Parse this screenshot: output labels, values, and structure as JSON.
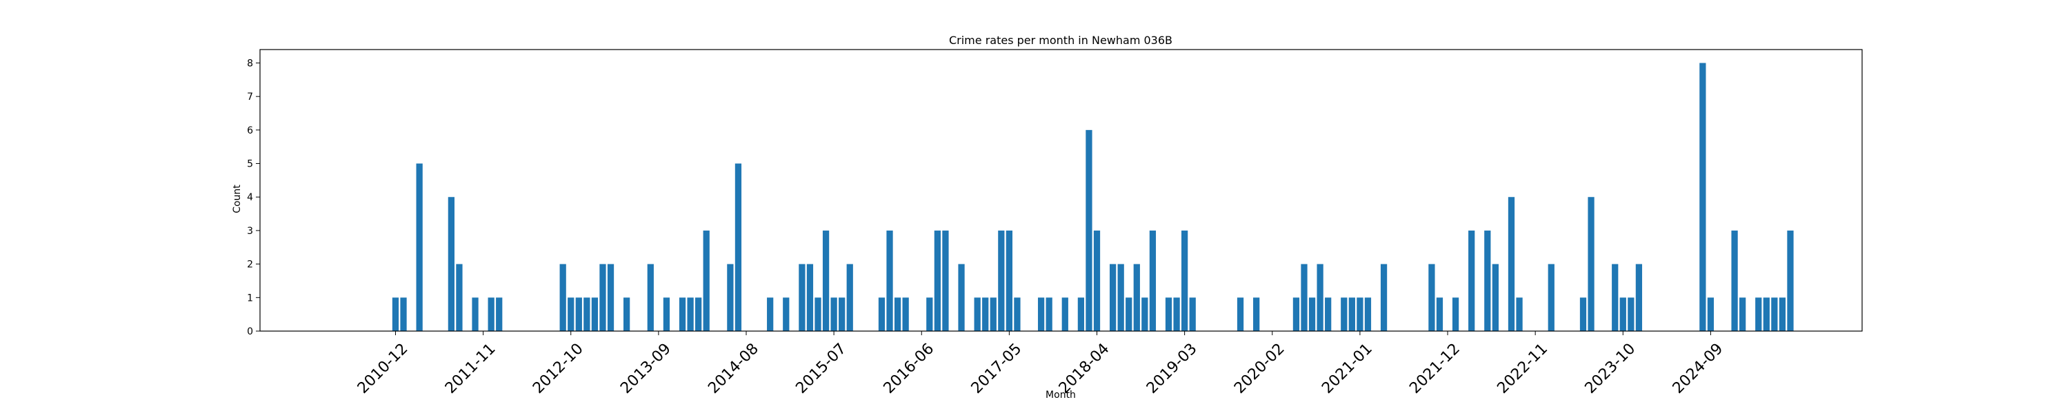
{
  "chart_data": {
    "type": "bar",
    "title": "Crime rates per month in Newham 036B",
    "xlabel": "Month",
    "ylabel": "Count",
    "ylim": [
      0,
      8.4
    ],
    "yticks": [
      0,
      1,
      2,
      3,
      4,
      5,
      6,
      7,
      8
    ],
    "xticks": [
      "2010-12",
      "2011-11",
      "2012-10",
      "2013-09",
      "2014-08",
      "2015-07",
      "2016-06",
      "2017-05",
      "2018-04",
      "2019-03",
      "2020-02",
      "2021-01",
      "2021-12",
      "2022-11",
      "2023-10",
      "2024-09"
    ],
    "grid": false,
    "bar_color": "#1f77b4",
    "x": [
      "2010-12",
      "2011-01",
      "2011-03",
      "2011-07",
      "2011-08",
      "2011-10",
      "2011-12",
      "2012-01",
      "2012-09",
      "2012-10",
      "2012-11",
      "2012-12",
      "2013-01",
      "2013-02",
      "2013-03",
      "2013-05",
      "2013-08",
      "2013-10",
      "2013-12",
      "2014-01",
      "2014-02",
      "2014-03",
      "2014-06",
      "2014-07",
      "2014-11",
      "2015-01",
      "2015-03",
      "2015-04",
      "2015-05",
      "2015-06",
      "2015-07",
      "2015-08",
      "2015-09",
      "2016-01",
      "2016-02",
      "2016-03",
      "2016-04",
      "2016-07",
      "2016-08",
      "2016-09",
      "2016-11",
      "2017-01",
      "2017-02",
      "2017-03",
      "2017-04",
      "2017-05",
      "2017-06",
      "2017-09",
      "2017-10",
      "2017-12",
      "2018-02",
      "2018-03",
      "2018-04",
      "2018-06",
      "2018-07",
      "2018-08",
      "2018-09",
      "2018-10",
      "2018-11",
      "2019-01",
      "2019-02",
      "2019-03",
      "2019-04",
      "2019-10",
      "2019-12",
      "2020-05",
      "2020-06",
      "2020-07",
      "2020-08",
      "2020-09",
      "2020-11",
      "2020-12",
      "2021-01",
      "2021-02",
      "2021-04",
      "2021-10",
      "2021-11",
      "2022-01",
      "2022-03",
      "2022-05",
      "2022-06",
      "2022-08",
      "2022-09",
      "2023-01",
      "2023-05",
      "2023-06",
      "2023-09",
      "2023-10",
      "2023-11",
      "2023-12",
      "2024-08",
      "2024-09",
      "2024-12",
      "2025-01",
      "2025-03",
      "2025-04",
      "2025-05",
      "2025-06",
      "2025-07"
    ],
    "values": [
      1,
      1,
      5,
      4,
      2,
      1,
      1,
      1,
      2,
      1,
      1,
      1,
      1,
      2,
      2,
      1,
      2,
      1,
      1,
      1,
      1,
      3,
      2,
      5,
      1,
      1,
      2,
      2,
      1,
      3,
      1,
      1,
      2,
      1,
      3,
      1,
      1,
      1,
      3,
      3,
      2,
      1,
      1,
      1,
      3,
      3,
      1,
      1,
      1,
      1,
      1,
      6,
      3,
      2,
      2,
      1,
      2,
      1,
      3,
      1,
      1,
      3,
      1,
      1,
      1,
      1,
      2,
      1,
      2,
      1,
      1,
      1,
      1,
      1,
      2,
      2,
      1,
      1,
      3,
      3,
      2,
      4,
      1,
      2,
      1,
      4,
      2,
      1,
      1,
      2,
      8,
      1,
      3,
      1,
      1,
      1,
      1,
      1,
      3
    ]
  }
}
